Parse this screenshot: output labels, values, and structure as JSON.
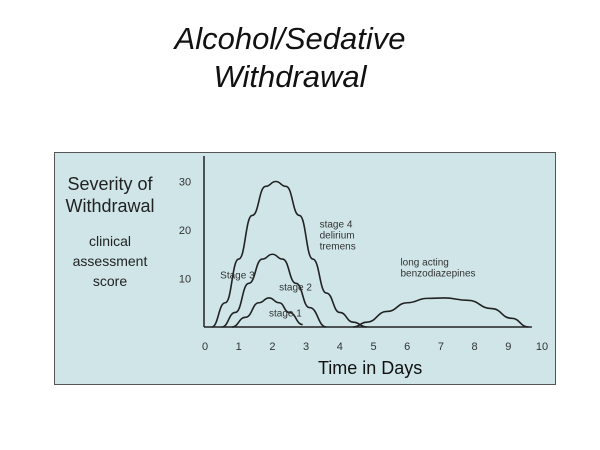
{
  "title_lines": [
    "Alcohol/Sedative",
    "Withdrawal"
  ],
  "chart_data": {
    "type": "line",
    "ylabel": "Severity of Withdrawal",
    "ylabel_sub": "clinical assessment score",
    "xlabel": "Time in Days",
    "xlim": [
      0,
      10
    ],
    "ylim": [
      0,
      30
    ],
    "xticks": [
      0,
      1,
      2,
      3,
      4,
      5,
      6,
      7,
      8,
      9,
      10
    ],
    "yticks": [
      10,
      20,
      30
    ],
    "grid": false,
    "background": "#cfe5e8",
    "line_color": "#222222",
    "series": [
      {
        "label": "stage 4 delirium tremens",
        "label_lines": [
          "stage 4",
          "delirium",
          "tremens"
        ],
        "x": [
          0.2,
          0.6,
          1.0,
          1.4,
          1.8,
          2.1,
          2.4,
          2.8,
          3.2,
          3.6,
          4.0,
          4.4,
          4.8
        ],
        "y": [
          0,
          5,
          14,
          23,
          29,
          30,
          29,
          23,
          14,
          7,
          3,
          1,
          0
        ]
      },
      {
        "label": "Stage 3",
        "label_lines": [
          "Stage 3"
        ],
        "x": [
          0.5,
          0.9,
          1.3,
          1.7,
          2.0,
          2.3,
          2.7,
          3.1,
          3.6
        ],
        "y": [
          0,
          3,
          9,
          14,
          15,
          14,
          9,
          4,
          0
        ]
      },
      {
        "label": "stage 2",
        "label_lines": [
          "stage 2"
        ],
        "x": [],
        "y": []
      },
      {
        "label": "stage 1",
        "label_lines": [
          "stage 1"
        ],
        "x": [
          0.8,
          1.2,
          1.6,
          1.9,
          2.2,
          2.5,
          2.9
        ],
        "y": [
          0,
          2,
          5,
          6,
          5,
          3,
          0.5
        ]
      },
      {
        "label": "long acting benzodiazepines",
        "label_lines": [
          "long acting",
          "benzodiazepines"
        ],
        "x": [
          4.4,
          4.8,
          5.4,
          6.0,
          6.6,
          7.1,
          7.8,
          8.5,
          9.1,
          9.6
        ],
        "y": [
          0,
          1,
          3.2,
          5,
          5.9,
          6,
          5.5,
          3.8,
          1.8,
          0
        ]
      }
    ]
  }
}
